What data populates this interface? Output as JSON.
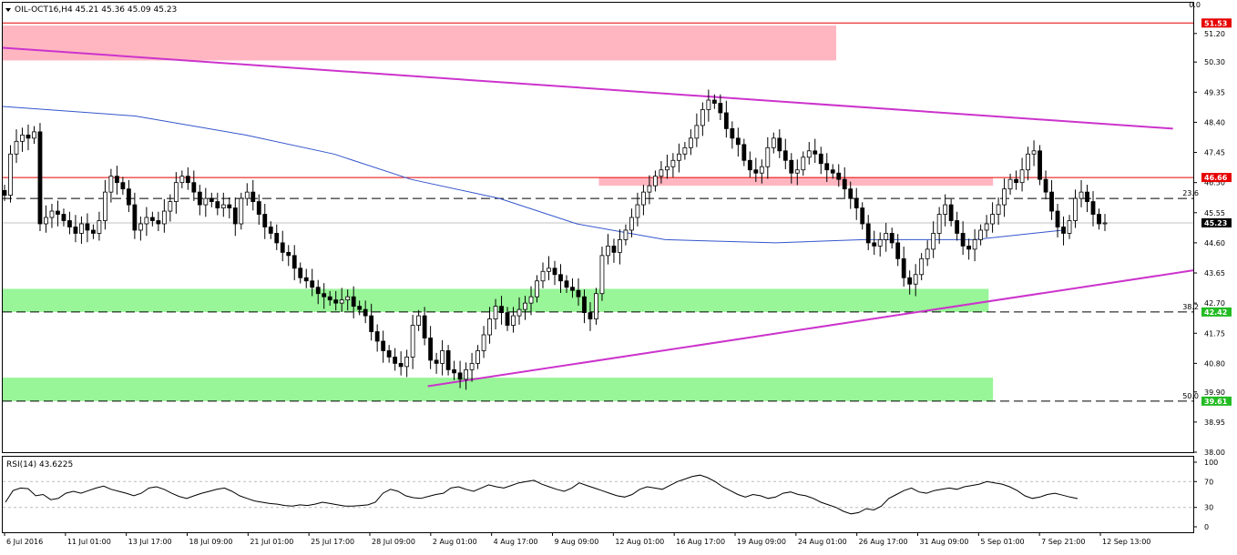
{
  "chart_data": [
    {
      "type": "candlestick",
      "title": "OIL-OCT16,H4  45.21 45.36 45.09 45.23",
      "symbol": "OIL-OCT16,H4",
      "ohlc_header": {
        "open": 45.21,
        "high": 45.36,
        "low": 45.09,
        "close": 45.23
      },
      "ylim": [
        38.0,
        52.17
      ],
      "y_ticks": [
        "51.20",
        "50.30",
        "49.35",
        "48.40",
        "47.45",
        "46.50",
        "45.55",
        "44.60",
        "43.65",
        "42.70",
        "41.75",
        "40.80",
        "39.90",
        "38.95",
        "38.00"
      ],
      "x_tick_labels": [
        "6 Jul 2016",
        "11 Jul 01:00",
        "13 Jul 17:00",
        "18 Jul 09:00",
        "21 Jul 01:00",
        "25 Jul 17:00",
        "28 Jul 09:00",
        "2 Aug 01:00",
        "4 Aug 17:00",
        "9 Aug 09:00",
        "12 Aug 01:00",
        "16 Aug 17:00",
        "19 Aug 09:00",
        "24 Aug 01:00",
        "26 Aug 17:00",
        "31 Aug 09:00",
        "5 Sep 01:00",
        "7 Sep 21:00",
        "12 Sep 13:00"
      ],
      "close_path": [
        46.1,
        47.4,
        47.8,
        48.0,
        47.9,
        48.1,
        45.2,
        45.4,
        45.6,
        45.5,
        45.3,
        45.1,
        44.9,
        45.2,
        45.0,
        44.9,
        45.3,
        46.2,
        46.7,
        46.5,
        46.3,
        45.8,
        45.0,
        45.2,
        45.4,
        45.3,
        45.2,
        45.6,
        45.9,
        46.5,
        46.7,
        46.5,
        46.2,
        45.8,
        46.0,
        45.9,
        45.7,
        45.8,
        45.7,
        45.2,
        46.0,
        46.2,
        45.9,
        45.5,
        45.1,
        44.9,
        44.6,
        44.3,
        44.2,
        43.8,
        43.5,
        43.4,
        43.2,
        43.0,
        42.9,
        42.8,
        42.7,
        42.8,
        42.9,
        42.6,
        42.5,
        42.3,
        41.8,
        41.5,
        41.2,
        41.0,
        40.8,
        40.7,
        41.0,
        42.0,
        42.3,
        41.6,
        40.9,
        40.8,
        41.2,
        40.6,
        40.5,
        40.3,
        40.6,
        40.8,
        41.2,
        41.7,
        42.2,
        42.6,
        42.4,
        42.0,
        42.3,
        42.5,
        42.7,
        42.9,
        43.4,
        43.7,
        43.8,
        43.6,
        43.4,
        43.2,
        43.1,
        42.9,
        42.4,
        42.2,
        43.0,
        44.2,
        44.5,
        44.3,
        44.7,
        45.0,
        45.4,
        45.8,
        46.2,
        46.4,
        46.7,
        46.9,
        47.0,
        47.2,
        47.4,
        47.6,
        47.9,
        48.3,
        48.8,
        49.1,
        49.0,
        48.7,
        48.2,
        47.9,
        47.7,
        47.2,
        46.9,
        46.8,
        47.0,
        47.6,
        47.9,
        47.5,
        47.2,
        46.8,
        46.9,
        47.3,
        47.5,
        47.4,
        47.1,
        46.9,
        46.8,
        46.6,
        46.3,
        46.0,
        45.7,
        45.2,
        44.6,
        44.5,
        44.7,
        44.9,
        44.6,
        44.1,
        43.5,
        43.3,
        43.6,
        44.1,
        44.4,
        44.9,
        45.5,
        45.8,
        45.3,
        44.9,
        44.5,
        44.4,
        44.7,
        45.0,
        45.2,
        45.5,
        45.8,
        46.3,
        46.6,
        46.5,
        46.9,
        47.4,
        47.5,
        46.6,
        46.2,
        45.6,
        45.1,
        44.9,
        45.3,
        46.0,
        46.2,
        45.9,
        45.5,
        45.2,
        45.23
      ],
      "series": [
        {
          "name": "",
          "kind": "moving-average",
          "color": "#3355cc",
          "points": [
            [
              0,
              48.9
            ],
            [
              0.12,
              48.6
            ],
            [
              0.22,
              48.0
            ],
            [
              0.3,
              47.4
            ],
            [
              0.37,
              46.6
            ],
            [
              0.45,
              46.0
            ],
            [
              0.52,
              45.2
            ],
            [
              0.6,
              44.7
            ],
            [
              0.7,
              44.6
            ],
            [
              0.78,
              44.7
            ],
            [
              0.88,
              44.7
            ],
            [
              0.96,
              45.0
            ]
          ]
        }
      ],
      "trendlines": [
        {
          "name": "",
          "color": "#cc33cc",
          "from": [
            0,
            50.75
          ],
          "to": [
            1.06,
            48.2
          ]
        },
        {
          "name": "",
          "color": "#cc33cc",
          "from": [
            0.385,
            40.08
          ],
          "to": [
            1.3,
            44.9
          ]
        }
      ],
      "zones": [
        {
          "color": "#ffb6c1",
          "y_low": 50.35,
          "y_high": 51.45,
          "x_start": 0,
          "x_end": 0.755
        },
        {
          "color": "#ffb6c1",
          "y_low": 46.4,
          "y_high": 46.66,
          "x_start": 0.54,
          "x_end": 0.897
        },
        {
          "color": "#98f598",
          "y_low": 42.42,
          "y_high": 43.15,
          "x_start": 0,
          "x_end": 0.893
        },
        {
          "color": "#98f598",
          "y_low": 39.61,
          "y_high": 40.35,
          "x_start": 0,
          "x_end": 0.897
        }
      ],
      "horizontal_lines": [
        {
          "label": "51.53",
          "value": 51.53,
          "style": "solid",
          "color": "#e60000"
        },
        {
          "label": "46.66",
          "value": 46.66,
          "style": "solid",
          "color": "#e60000"
        },
        {
          "label": "23.6",
          "value": 46.0,
          "style": "dashed",
          "color": "#000000"
        },
        {
          "label": "38.2",
          "value": 42.42,
          "style": "dashed",
          "color": "#000000"
        },
        {
          "label": "50.0",
          "value": 39.61,
          "style": "dashed",
          "color": "#000000"
        },
        {
          "label": "",
          "value": 45.23,
          "style": "solid",
          "color": "#c0c0c0"
        }
      ],
      "fib_top_label": "0.0",
      "price_tags": [
        {
          "label": "51.53",
          "value": 51.53,
          "color": "#e60000"
        },
        {
          "label": "46.66",
          "value": 46.66,
          "color": "#e60000"
        },
        {
          "label": "45.23",
          "value": 45.23,
          "color": "#000000"
        },
        {
          "label": "42.42",
          "value": 42.42,
          "color": "#22bb22"
        },
        {
          "label": "39.61",
          "value": 39.61,
          "color": "#22bb22"
        }
      ],
      "colors": {
        "up": "#ffffff",
        "down": "#000000",
        "grid": "none"
      }
    },
    {
      "type": "line",
      "title": "RSI(14) 43.6225",
      "indicator": "RSI(14)",
      "current_value": 43.6225,
      "ylim": [
        0,
        100
      ],
      "y_ticks": [
        "100",
        "70",
        "30",
        "0"
      ],
      "levels": [
        70,
        30
      ],
      "color": "#000000",
      "values": [
        38,
        56,
        60,
        59,
        48,
        50,
        42,
        44,
        52,
        55,
        52,
        56,
        60,
        63,
        58,
        55,
        52,
        48,
        52,
        60,
        62,
        58,
        52,
        47,
        44,
        48,
        52,
        55,
        58,
        60,
        55,
        48,
        44,
        40,
        38,
        36,
        35,
        33,
        32,
        34,
        33,
        35,
        38,
        36,
        34,
        32,
        32,
        33,
        34,
        38,
        52,
        58,
        55,
        48,
        45,
        44,
        47,
        50,
        52,
        60,
        62,
        58,
        55,
        60,
        65,
        62,
        60,
        64,
        68,
        70,
        72,
        66,
        62,
        58,
        55,
        60,
        68,
        64,
        60,
        56,
        52,
        48,
        46,
        50,
        58,
        62,
        60,
        58,
        64,
        70,
        74,
        78,
        80,
        76,
        70,
        62,
        56,
        50,
        46,
        50,
        48,
        44,
        46,
        52,
        54,
        50,
        48,
        44,
        38,
        34,
        30,
        24,
        20,
        22,
        28,
        26,
        32,
        44,
        50,
        56,
        60,
        54,
        52,
        56,
        58,
        60,
        58,
        62,
        64,
        66,
        70,
        68,
        66,
        62,
        56,
        48,
        44,
        46,
        50,
        52,
        49,
        46,
        43.62
      ]
    }
  ]
}
